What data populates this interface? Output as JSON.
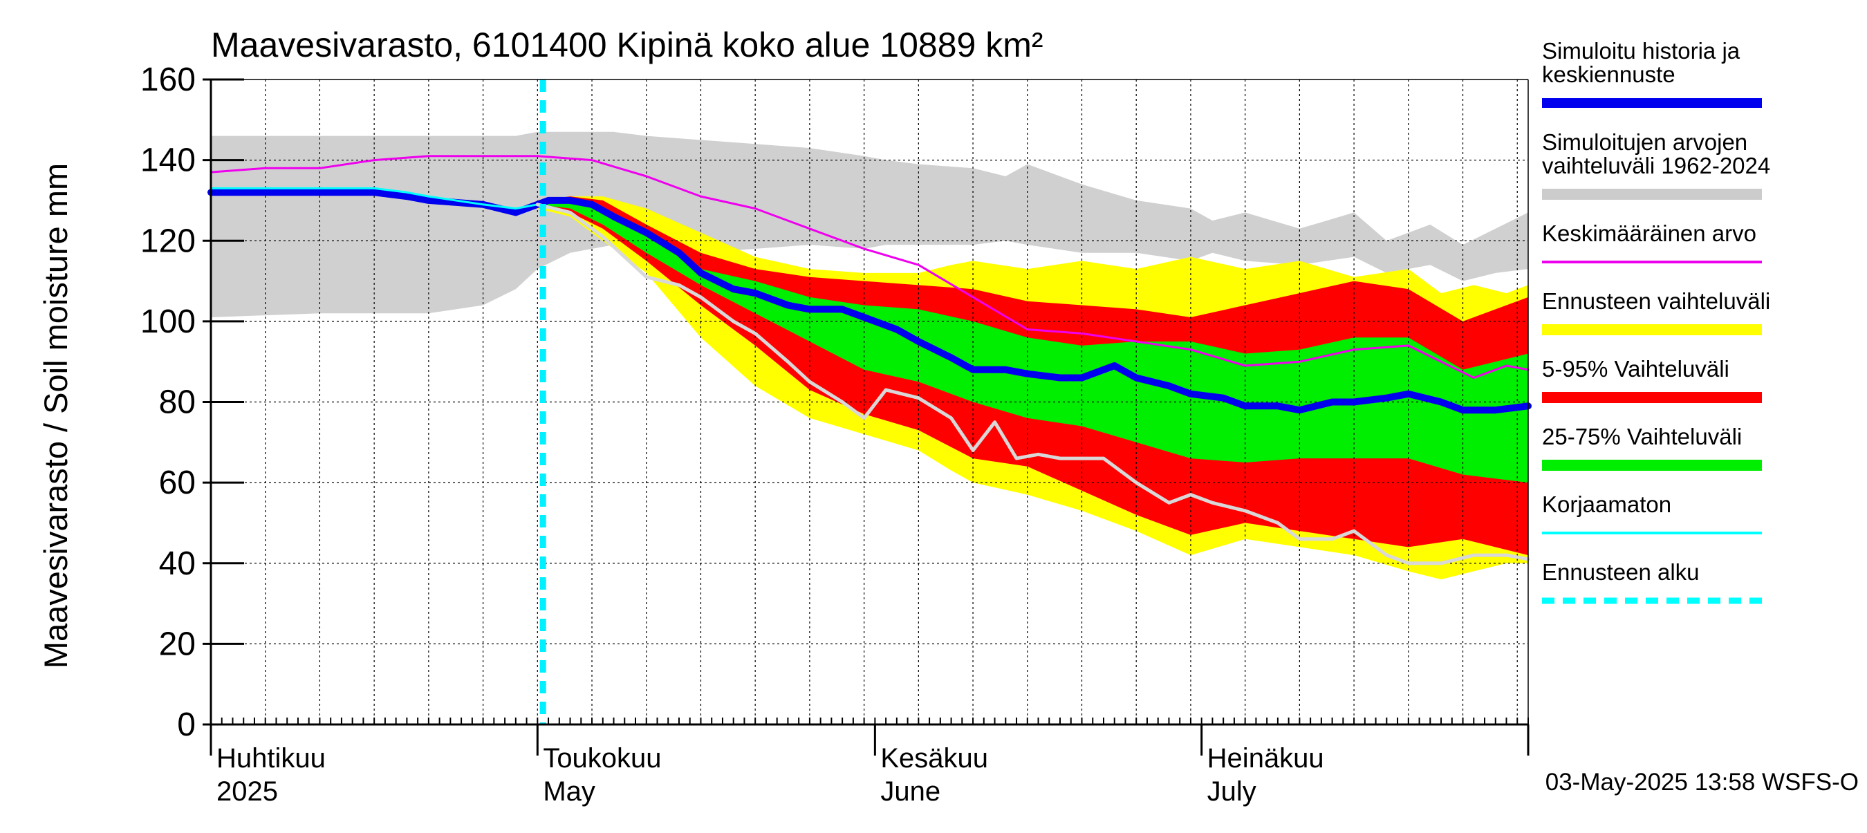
{
  "chart_data": {
    "type": "area",
    "title": "Maavesivarasto, 6101400 Kipinä koko alue 10889 km²",
    "ylabel": "Maavesivarasto / Soil moisture   mm",
    "xlabel": "",
    "ylim": [
      0,
      160
    ],
    "xlim": [
      0,
      121
    ],
    "grid": true,
    "yticks": [
      0,
      20,
      40,
      60,
      80,
      100,
      120,
      140,
      160
    ],
    "month_labels": [
      {
        "line1": "Huhtikuu",
        "line2": "2025",
        "day": 0
      },
      {
        "line1": "Toukokuu",
        "line2": "May",
        "day": 30
      },
      {
        "line1": "Kesäkuu",
        "line2": "June",
        "day": 61
      },
      {
        "line1": "Heinäkuu",
        "line2": "July",
        "day": 91
      }
    ],
    "month_boundaries": [
      0,
      30,
      61,
      91,
      121
    ],
    "forecast_start_day": 30.5,
    "timestamp": "03-May-2025 13:58 WSFS-O",
    "legend_position": "right",
    "legend": [
      {
        "label": "Simuloitu historia ja keskiennuste",
        "color": "#0000ee",
        "style": "thick"
      },
      {
        "label": "Simuloitujen arvojen vaihteluväli 1962-2024",
        "color": "#cccccc",
        "style": "band"
      },
      {
        "label": "Keskimääräinen arvo",
        "color": "#ee00ee",
        "style": "thin"
      },
      {
        "label": "Ennusteen vaihteluväli",
        "color": "#ffff00",
        "style": "band"
      },
      {
        "label": "5-95% Vaihteluväli",
        "color": "#ff0000",
        "style": "band"
      },
      {
        "label": "25-75% Vaihteluväli",
        "color": "#00ee00",
        "style": "band"
      },
      {
        "label": "Korjaamaton",
        "color": "#00ffff",
        "style": "thin"
      },
      {
        "label": "Ennusteen alku",
        "color": "#00ffff",
        "style": "dashed"
      }
    ],
    "series": [
      {
        "name": "Simuloitujen arvojen vaihteluväli 1962-2024",
        "kind": "band",
        "color": "#d0d0d0",
        "x": [
          0,
          10,
          20,
          25,
          28,
          30,
          33,
          37,
          40,
          45,
          50,
          55,
          60,
          62,
          65,
          70,
          73,
          75,
          80,
          85,
          90,
          92,
          95,
          100,
          105,
          108,
          112,
          115,
          118,
          121
        ],
        "upper": [
          146,
          146,
          146,
          146,
          146,
          147,
          147,
          147,
          146,
          145,
          144,
          143,
          141,
          140,
          139,
          138,
          136,
          139,
          134,
          130,
          128,
          125,
          127,
          123,
          127,
          120,
          124,
          119,
          123,
          127
        ],
        "lower": [
          101,
          102,
          102,
          104,
          108,
          113,
          117,
          119,
          118,
          117,
          118,
          119,
          118,
          119,
          119,
          119,
          120,
          119,
          117,
          117,
          115,
          117,
          115,
          114,
          116,
          112,
          114,
          110,
          112,
          113
        ]
      },
      {
        "name": "Ennusteen vaihteluväli",
        "kind": "band",
        "color": "#ffff00",
        "x": [
          30,
          33,
          36,
          40,
          45,
          50,
          55,
          60,
          65,
          68,
          70,
          75,
          80,
          85,
          90,
          95,
          100,
          105,
          110,
          113,
          116,
          119,
          121
        ],
        "upper": [
          130,
          131,
          131,
          128,
          122,
          116,
          113,
          112,
          112,
          114,
          115,
          113,
          115,
          113,
          116,
          113,
          115,
          111,
          113,
          107,
          109,
          107,
          109
        ],
        "lower": [
          128,
          126,
          120,
          112,
          96,
          84,
          76,
          72,
          68,
          63,
          60,
          57,
          53,
          48,
          42,
          46,
          44,
          42,
          38,
          36,
          38,
          40,
          40
        ]
      },
      {
        "name": "5-95% Vaihteluväli",
        "kind": "band",
        "color": "#ff0000",
        "x": [
          30,
          33,
          36,
          40,
          45,
          50,
          55,
          60,
          65,
          70,
          75,
          80,
          85,
          90,
          95,
          100,
          105,
          110,
          115,
          121
        ],
        "upper": [
          130,
          131,
          130,
          124,
          117,
          113,
          111,
          110,
          109,
          108,
          105,
          104,
          103,
          101,
          104,
          107,
          110,
          108,
          100,
          106
        ],
        "lower": [
          129,
          127,
          123,
          115,
          104,
          94,
          83,
          77,
          73,
          66,
          64,
          58,
          52,
          47,
          50,
          48,
          46,
          44,
          46,
          42
        ]
      },
      {
        "name": "25-75% Vaihteluväli",
        "kind": "band",
        "color": "#00ee00",
        "x": [
          30,
          33,
          36,
          40,
          45,
          50,
          55,
          60,
          65,
          70,
          75,
          80,
          85,
          90,
          95,
          100,
          105,
          110,
          115,
          121
        ],
        "upper": [
          130,
          130,
          128,
          121,
          113,
          110,
          106,
          104,
          103,
          100,
          96,
          94,
          95,
          95,
          92,
          93,
          96,
          96,
          88,
          92
        ],
        "lower": [
          129,
          128,
          124,
          117,
          109,
          102,
          95,
          88,
          85,
          80,
          76,
          74,
          70,
          66,
          65,
          66,
          66,
          66,
          62,
          60
        ]
      },
      {
        "name": "Simuloitu historia ja keskiennuste",
        "kind": "line",
        "color": "#0000ee",
        "width": 10,
        "x": [
          0,
          5,
          10,
          15,
          18,
          20,
          25,
          28,
          30,
          31,
          33,
          35,
          37,
          40,
          43,
          45,
          48,
          50,
          53,
          55,
          58,
          60,
          63,
          65,
          68,
          70,
          73,
          75,
          78,
          80,
          83,
          85,
          88,
          90,
          93,
          95,
          98,
          100,
          103,
          105,
          108,
          110,
          113,
          115,
          118,
          121
        ],
        "y": [
          132,
          132,
          132,
          132,
          131,
          130,
          129,
          127,
          129,
          130,
          130,
          129,
          126,
          122,
          117,
          112,
          108,
          107,
          104,
          103,
          103,
          101,
          98,
          95,
          91,
          88,
          88,
          87,
          86,
          86,
          89,
          86,
          84,
          82,
          81,
          79,
          79,
          78,
          80,
          80,
          81,
          82,
          80,
          78,
          78,
          79
        ]
      },
      {
        "name": "Keskimääräinen arvo",
        "kind": "line",
        "color": "#ee00ee",
        "width": 3,
        "x": [
          0,
          5,
          10,
          15,
          20,
          25,
          30,
          35,
          40,
          45,
          50,
          55,
          60,
          65,
          70,
          75,
          80,
          85,
          90,
          95,
          100,
          105,
          110,
          113,
          116,
          119,
          121
        ],
        "y": [
          137,
          138,
          138,
          140,
          141,
          141,
          141,
          140,
          136,
          131,
          128,
          123,
          118,
          114,
          106,
          98,
          97,
          95,
          93,
          89,
          90,
          93,
          94,
          90,
          86,
          89,
          88
        ]
      },
      {
        "name": "Korjaamaton",
        "kind": "line",
        "color": "#00ffff",
        "width": 3,
        "x": [
          0,
          5,
          10,
          15,
          18,
          20,
          25,
          28,
          30
        ],
        "y": [
          133,
          133,
          133,
          133,
          132,
          131,
          129,
          128,
          129
        ]
      },
      {
        "name": "Simuloitu (harmaa)",
        "kind": "line",
        "color": "#d8d8d8",
        "width": 5,
        "x": [
          30,
          33,
          36,
          40,
          43,
          45,
          48,
          50,
          53,
          55,
          58,
          60,
          62,
          65,
          68,
          70,
          72,
          74,
          76,
          78,
          80,
          82,
          85,
          88,
          90,
          92,
          95,
          98,
          100,
          103,
          105,
          108,
          110,
          113,
          116,
          119,
          121
        ],
        "y": [
          129,
          127,
          121,
          111,
          109,
          106,
          100,
          97,
          90,
          85,
          80,
          76,
          83,
          81,
          76,
          68,
          75,
          66,
          67,
          66,
          66,
          66,
          60,
          55,
          57,
          55,
          53,
          50,
          46,
          46,
          48,
          42,
          40,
          40,
          42,
          42,
          41
        ]
      }
    ]
  }
}
